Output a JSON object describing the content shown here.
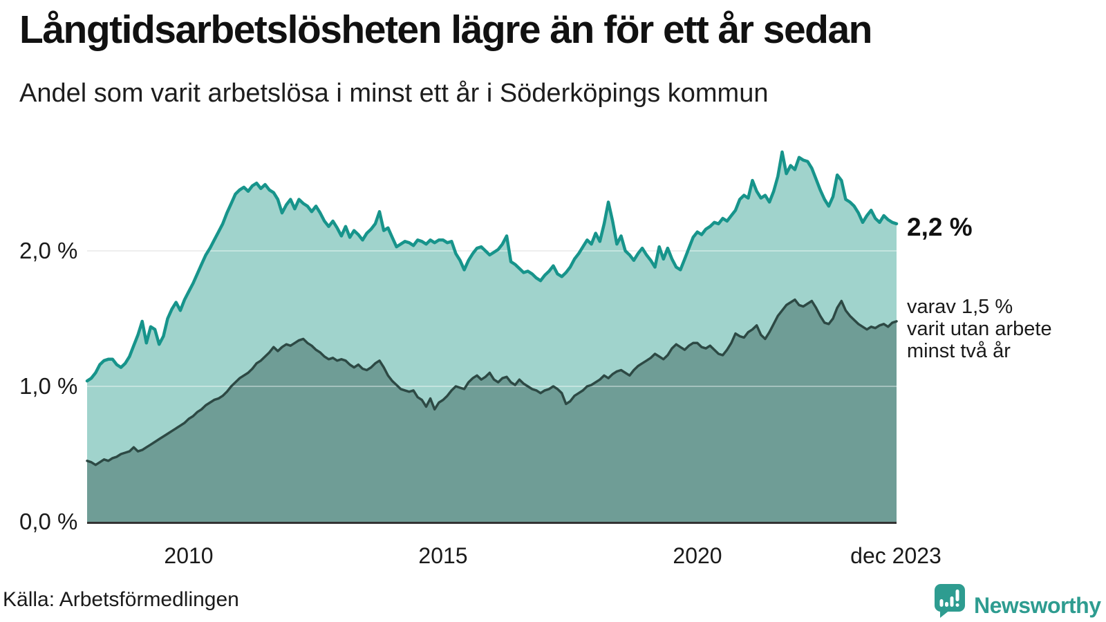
{
  "header": {
    "title": "Långtidsarbetslösheten lägre än för ett år sedan",
    "subtitle": "Andel som varit arbetslösa i minst ett år i Söderköpings kommun"
  },
  "chart_data": {
    "type": "area",
    "frequency": "monthly",
    "x_start": "2008-01",
    "x_end": "2023-12",
    "unit": "%",
    "ylim": [
      0,
      2.9
    ],
    "grid": "horizontal",
    "y_grid_values": [
      1,
      2
    ],
    "y_tick_labels": [
      "0,0 %",
      "1,0 %",
      "2,0 %"
    ],
    "x_tick_labels": [
      "2010",
      "2015",
      "2020",
      "dec 2023"
    ],
    "series": [
      {
        "name": "Andel arbetslösa minst ett år",
        "end_value": 2.2,
        "end_label": "2,2 %",
        "color": "#17948B",
        "fill": "#A0D3CC",
        "values": [
          1.04,
          1.06,
          1.1,
          1.16,
          1.19,
          1.2,
          1.2,
          1.16,
          1.14,
          1.17,
          1.22,
          1.3,
          1.38,
          1.48,
          1.32,
          1.44,
          1.42,
          1.31,
          1.37,
          1.5,
          1.57,
          1.62,
          1.56,
          1.64,
          1.7,
          1.76,
          1.83,
          1.9,
          1.97,
          2.02,
          2.08,
          2.14,
          2.2,
          2.28,
          2.35,
          2.42,
          2.45,
          2.47,
          2.44,
          2.48,
          2.5,
          2.46,
          2.49,
          2.45,
          2.43,
          2.38,
          2.28,
          2.34,
          2.38,
          2.31,
          2.38,
          2.35,
          2.33,
          2.29,
          2.33,
          2.28,
          2.22,
          2.18,
          2.22,
          2.17,
          2.11,
          2.18,
          2.1,
          2.15,
          2.12,
          2.08,
          2.13,
          2.16,
          2.2,
          2.29,
          2.15,
          2.17,
          2.1,
          2.03,
          2.05,
          2.07,
          2.06,
          2.04,
          2.08,
          2.07,
          2.05,
          2.08,
          2.06,
          2.08,
          2.08,
          2.06,
          2.07,
          1.98,
          1.93,
          1.86,
          1.93,
          1.98,
          2.02,
          2.03,
          2.0,
          1.97,
          1.99,
          2.01,
          2.05,
          2.11,
          1.92,
          1.9,
          1.87,
          1.84,
          1.85,
          1.83,
          1.8,
          1.78,
          1.82,
          1.85,
          1.89,
          1.83,
          1.81,
          1.84,
          1.88,
          1.94,
          1.98,
          2.03,
          2.08,
          2.05,
          2.13,
          2.07,
          2.2,
          2.36,
          2.22,
          2.05,
          2.11,
          2.0,
          1.97,
          1.93,
          1.98,
          2.02,
          1.97,
          1.93,
          1.88,
          2.03,
          1.94,
          2.02,
          1.94,
          1.88,
          1.86,
          1.94,
          2.02,
          2.1,
          2.14,
          2.12,
          2.16,
          2.18,
          2.21,
          2.2,
          2.24,
          2.22,
          2.26,
          2.3,
          2.38,
          2.41,
          2.39,
          2.52,
          2.44,
          2.39,
          2.41,
          2.36,
          2.44,
          2.55,
          2.73,
          2.57,
          2.63,
          2.6,
          2.69,
          2.67,
          2.66,
          2.61,
          2.53,
          2.45,
          2.38,
          2.33,
          2.4,
          2.56,
          2.52,
          2.38,
          2.36,
          2.33,
          2.28,
          2.21,
          2.26,
          2.3,
          2.24,
          2.21,
          2.26,
          2.23,
          2.21,
          2.2
        ]
      },
      {
        "name": "varav arbetslösa minst två år",
        "end_value": 1.5,
        "end_label": "varav 1,5 % varit utan arbete minst två år",
        "color": "#2D4944",
        "fill": "#6F9D96",
        "values": [
          0.45,
          0.44,
          0.42,
          0.44,
          0.46,
          0.45,
          0.47,
          0.48,
          0.5,
          0.51,
          0.52,
          0.55,
          0.52,
          0.53,
          0.55,
          0.57,
          0.59,
          0.61,
          0.63,
          0.65,
          0.67,
          0.69,
          0.71,
          0.73,
          0.76,
          0.78,
          0.81,
          0.83,
          0.86,
          0.88,
          0.9,
          0.91,
          0.93,
          0.96,
          1.0,
          1.03,
          1.06,
          1.08,
          1.1,
          1.13,
          1.17,
          1.19,
          1.22,
          1.25,
          1.29,
          1.26,
          1.29,
          1.31,
          1.3,
          1.32,
          1.34,
          1.35,
          1.32,
          1.3,
          1.27,
          1.25,
          1.22,
          1.2,
          1.21,
          1.19,
          1.2,
          1.19,
          1.16,
          1.14,
          1.16,
          1.13,
          1.12,
          1.14,
          1.17,
          1.19,
          1.14,
          1.08,
          1.04,
          1.01,
          0.98,
          0.97,
          0.96,
          0.97,
          0.92,
          0.9,
          0.85,
          0.91,
          0.83,
          0.88,
          0.9,
          0.93,
          0.97,
          1.0,
          0.99,
          0.98,
          1.03,
          1.06,
          1.08,
          1.05,
          1.07,
          1.1,
          1.05,
          1.03,
          1.06,
          1.07,
          1.03,
          1.01,
          1.05,
          1.02,
          1.0,
          0.98,
          0.97,
          0.95,
          0.97,
          0.98,
          1.0,
          0.98,
          0.95,
          0.87,
          0.89,
          0.93,
          0.95,
          0.97,
          1.0,
          1.01,
          1.03,
          1.05,
          1.08,
          1.06,
          1.09,
          1.11,
          1.12,
          1.1,
          1.08,
          1.12,
          1.15,
          1.17,
          1.19,
          1.21,
          1.24,
          1.22,
          1.2,
          1.23,
          1.28,
          1.31,
          1.29,
          1.27,
          1.3,
          1.32,
          1.32,
          1.29,
          1.28,
          1.3,
          1.27,
          1.24,
          1.23,
          1.27,
          1.32,
          1.39,
          1.37,
          1.36,
          1.4,
          1.42,
          1.45,
          1.38,
          1.35,
          1.4,
          1.46,
          1.52,
          1.56,
          1.6,
          1.62,
          1.64,
          1.6,
          1.59,
          1.61,
          1.63,
          1.58,
          1.52,
          1.47,
          1.46,
          1.5,
          1.58,
          1.63,
          1.56,
          1.52,
          1.49,
          1.46,
          1.44,
          1.42,
          1.44,
          1.43,
          1.45,
          1.46,
          1.44,
          1.47,
          1.48
        ]
      }
    ]
  },
  "annotations": {
    "value_label": "2,2 %",
    "secondary_lines": [
      "varav 1,5 %",
      "varit utan arbete",
      "minst två år"
    ]
  },
  "footer": {
    "source": "Källa: Arbetsförmedlingen",
    "brand": "Newsworthy"
  },
  "colors": {
    "line_primary": "#17948B",
    "fill_primary": "#A0D3CC",
    "line_secondary": "#2D4944",
    "fill_secondary": "#6F9D96",
    "axis": "#333333",
    "gridline": "#E4E4E4",
    "brand_teal": "#2E9C90",
    "text": "#1A1A1A"
  }
}
